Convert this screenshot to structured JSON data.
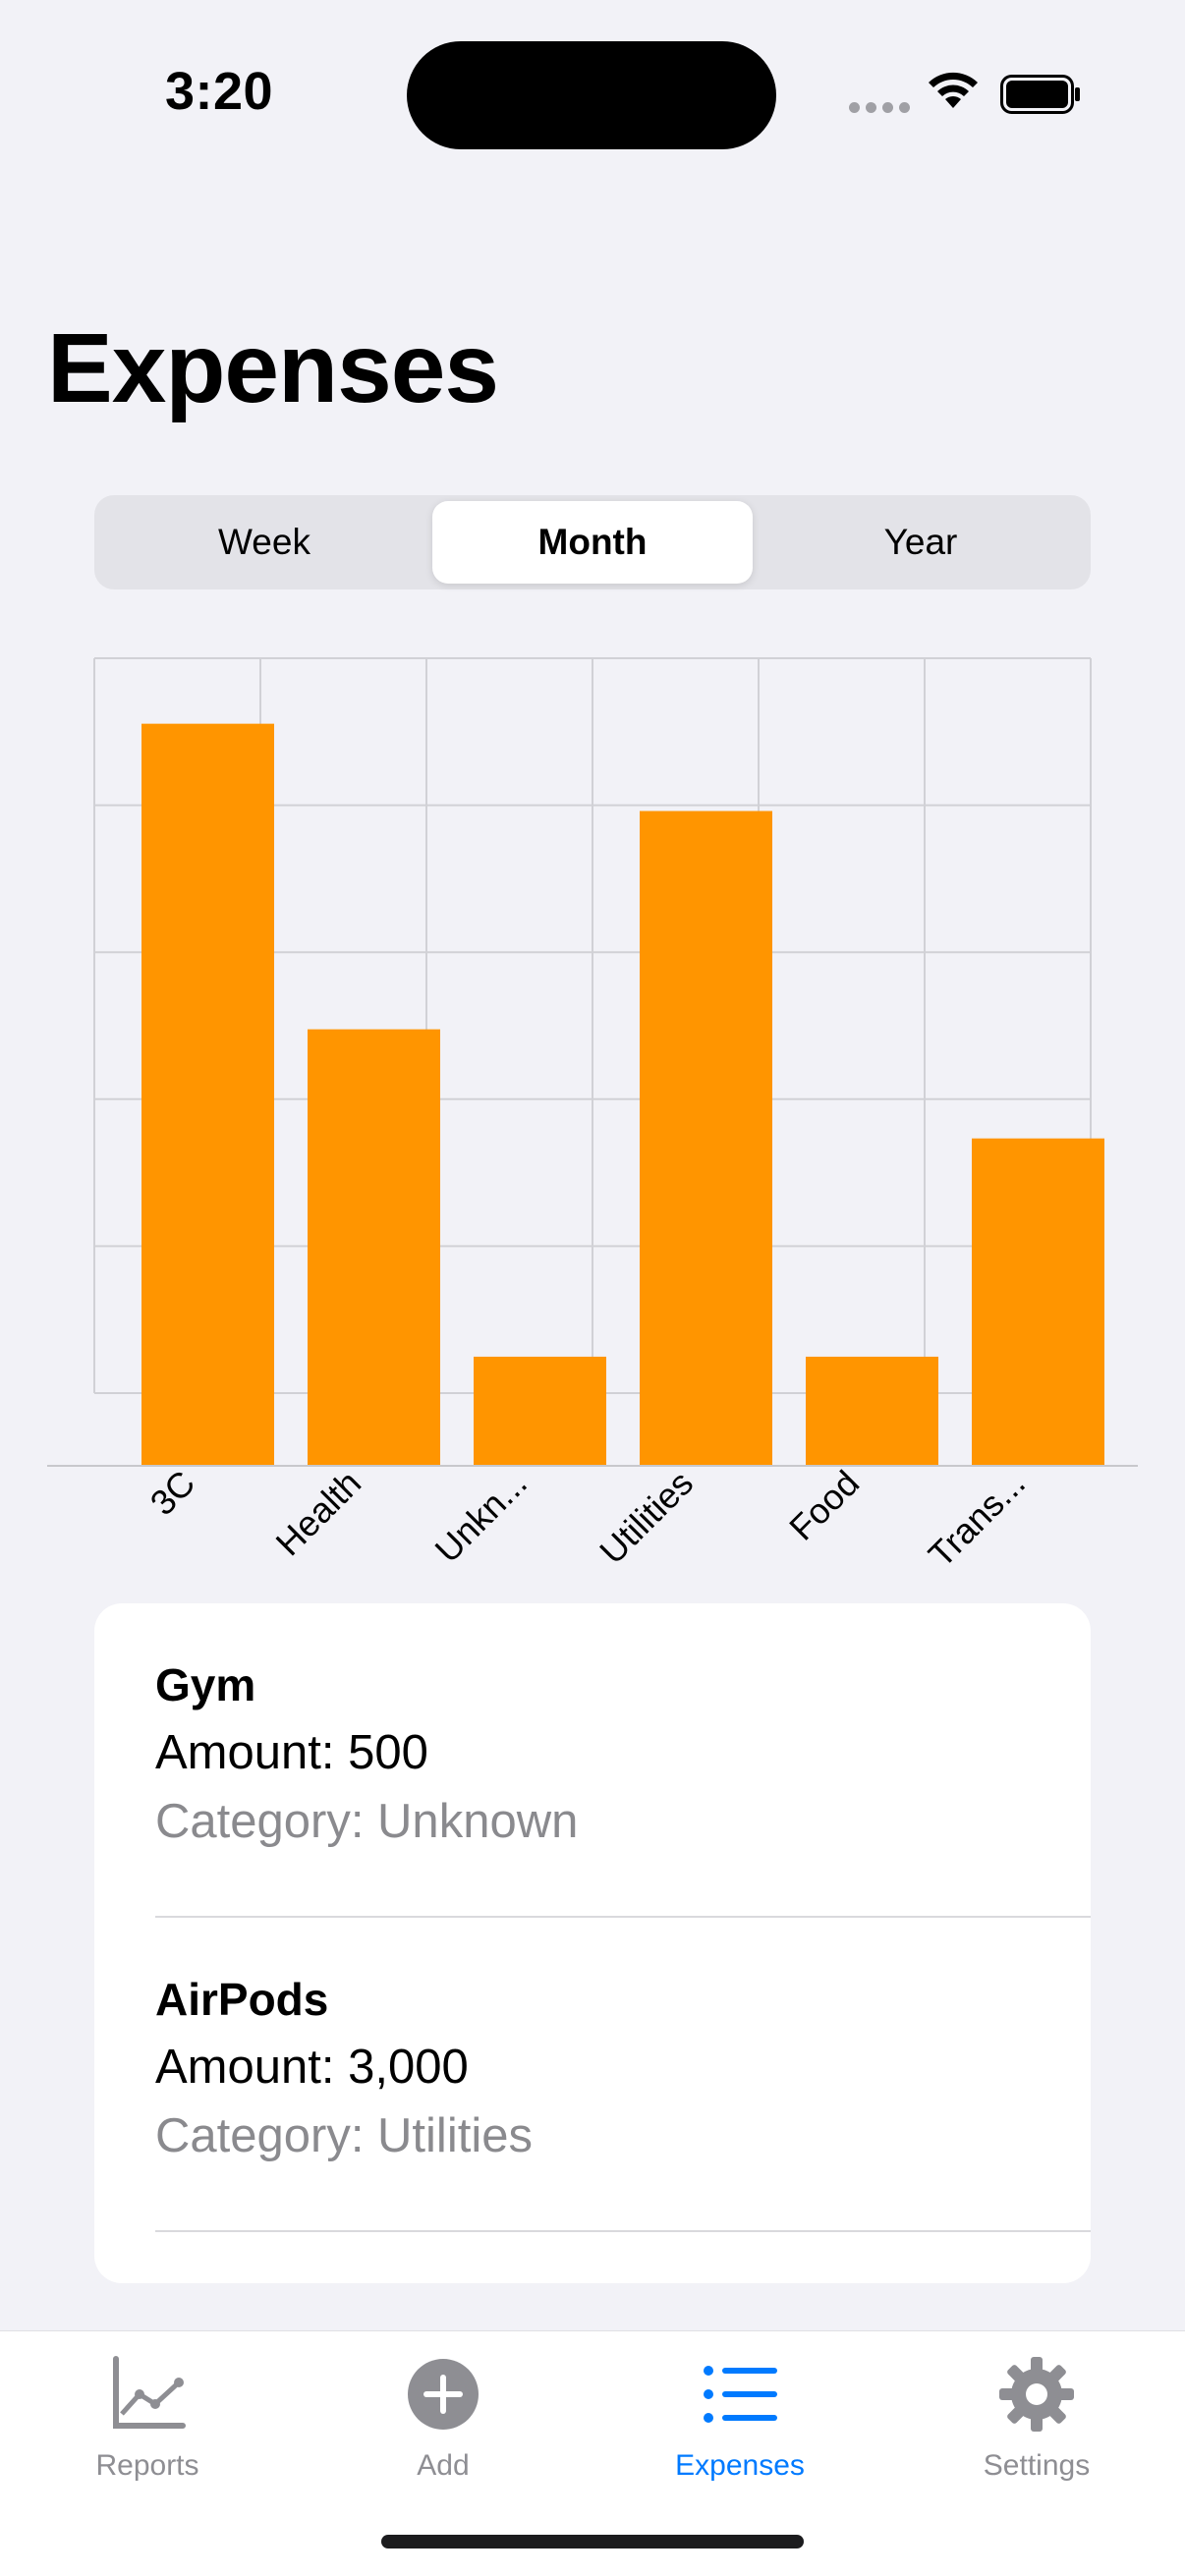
{
  "status_bar": {
    "time": "3:20"
  },
  "page": {
    "title": "Expenses"
  },
  "segments": [
    {
      "label": "Week",
      "selected": false
    },
    {
      "label": "Month",
      "selected": true
    },
    {
      "label": "Year",
      "selected": false
    }
  ],
  "chart_data": {
    "type": "bar",
    "categories": [
      "3C",
      "Health",
      "Unkn...",
      "Utilities",
      "Food",
      "Trans..."
    ],
    "values": [
      3400,
      2000,
      500,
      3000,
      500,
      1500
    ],
    "ylim": [
      0,
      3700
    ],
    "grid": true,
    "bar_color": "#FF9500"
  },
  "expenses": [
    {
      "title": "Gym",
      "amount": "Amount: 500",
      "category": "Category: Unknown"
    },
    {
      "title": "AirPods",
      "amount": "Amount: 3,000",
      "category": "Category: Utilities"
    }
  ],
  "tabs": [
    {
      "label": "Reports",
      "icon": "chart-line-icon",
      "active": false
    },
    {
      "label": "Add",
      "icon": "plus-circle-icon",
      "active": false
    },
    {
      "label": "Expenses",
      "icon": "list-bullet-icon",
      "active": true
    },
    {
      "label": "Settings",
      "icon": "gear-icon",
      "active": false
    }
  ],
  "colors": {
    "accent": "#007AFF",
    "inactive": "#8E8E93",
    "bar": "#FF9500"
  }
}
